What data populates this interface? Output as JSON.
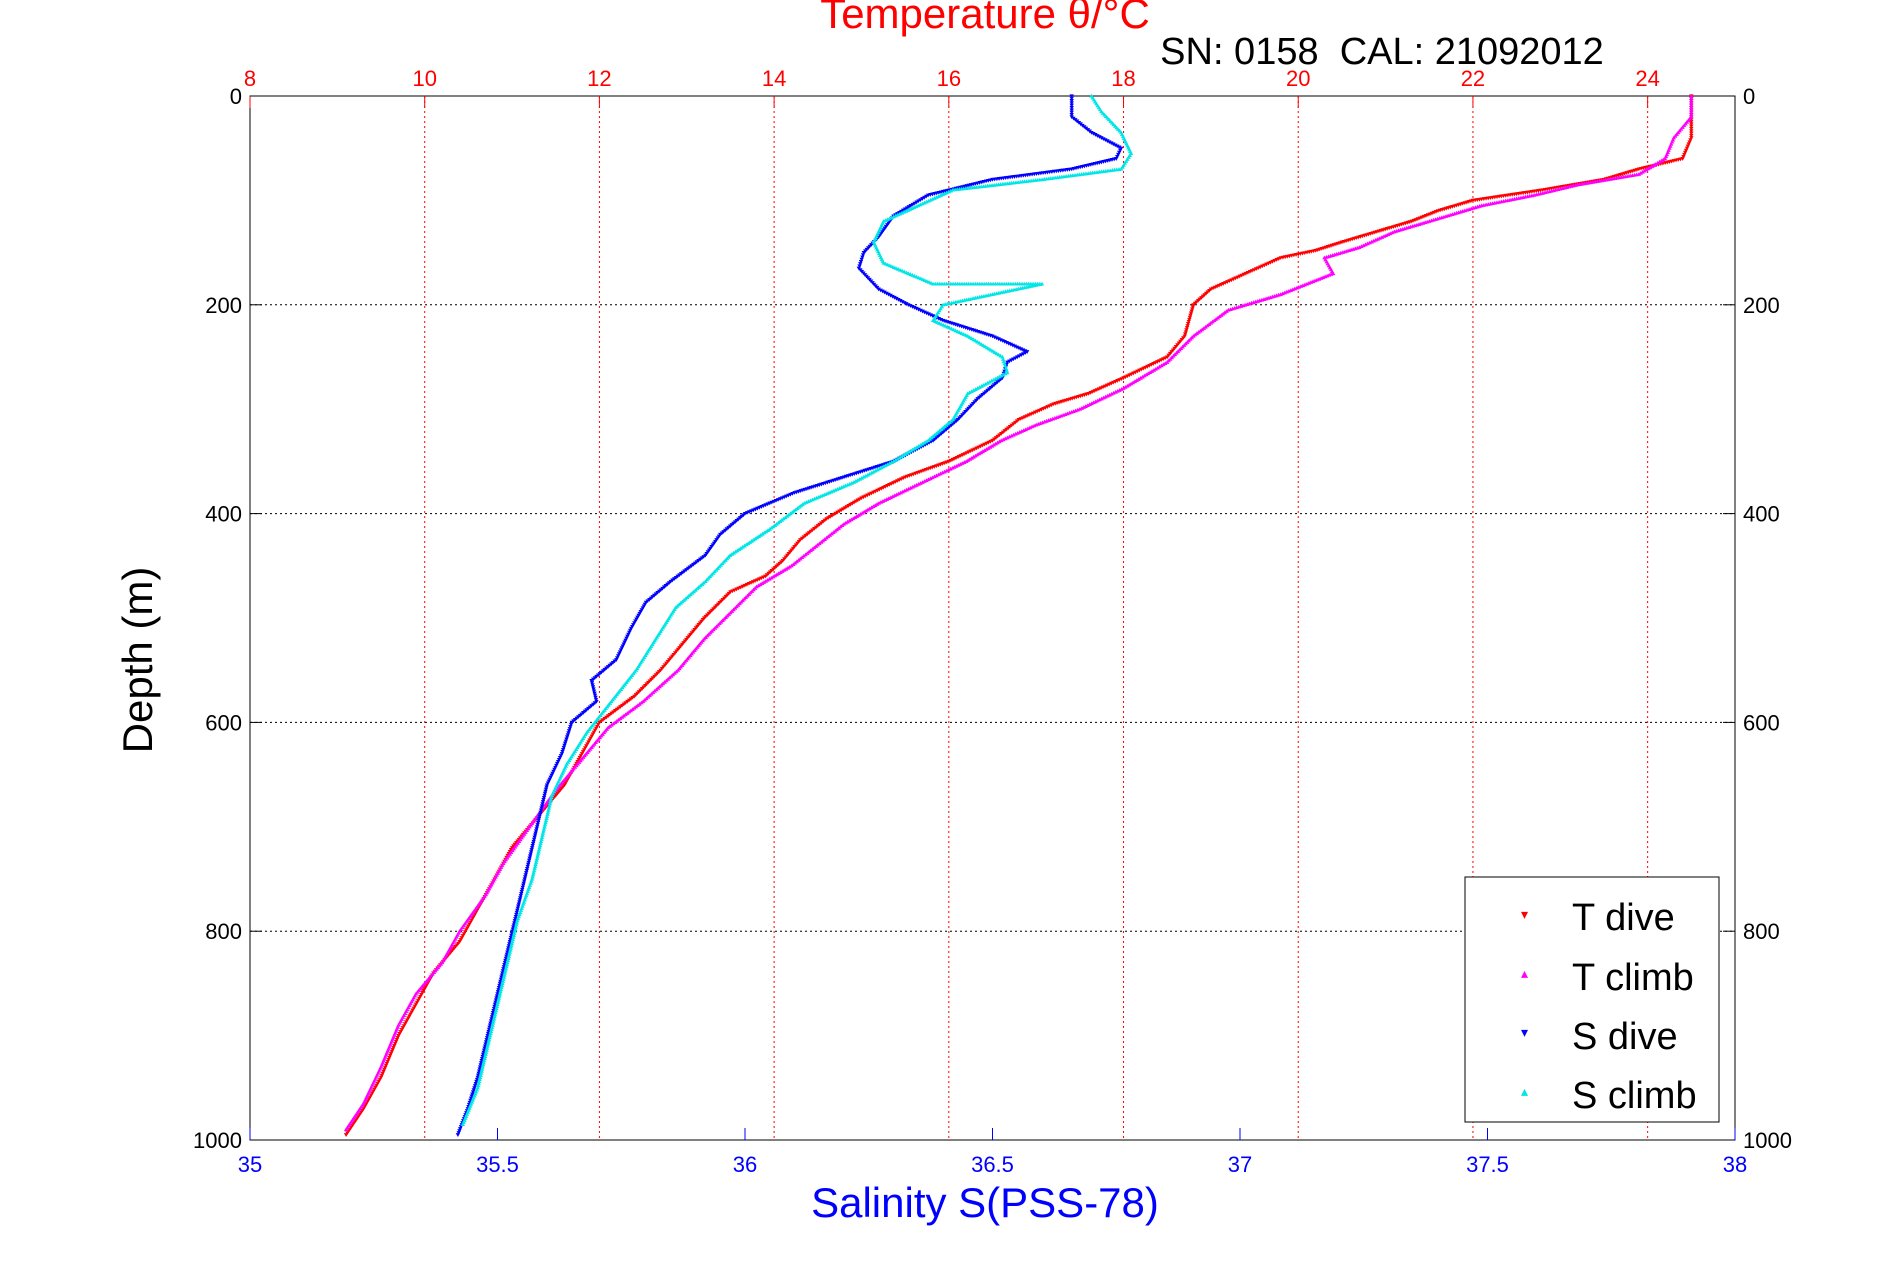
{
  "chart_data": {
    "type": "scatter",
    "title": "Temperature θ/°C",
    "subtitle": "SN: 0158  CAL: 21092012",
    "xlabel_top": "Temperature θ/°C",
    "xlabel_bottom": "Salinity S(PSS-78)",
    "ylabel": "Depth (m)",
    "temperature_axis": {
      "range": [
        8,
        25
      ],
      "ticks": [
        "8",
        "10",
        "12",
        "14",
        "16",
        "18",
        "20",
        "22",
        "24"
      ],
      "tick_values": [
        8,
        10,
        12,
        14,
        16,
        18,
        20,
        22,
        24
      ]
    },
    "salinity_axis": {
      "range": [
        35,
        38
      ],
      "ticks": [
        "35",
        "35.5",
        "36",
        "36.5",
        "37",
        "37.5",
        "38"
      ],
      "tick_values": [
        35,
        35.5,
        36,
        36.5,
        37,
        37.5,
        38
      ]
    },
    "depth_axis": {
      "range": [
        0,
        1000
      ],
      "reversed": true,
      "ticks": [
        "0",
        "200",
        "400",
        "600",
        "800",
        "1000"
      ],
      "tick_values": [
        0,
        200,
        400,
        600,
        800,
        1000
      ]
    },
    "grid": true,
    "legend_position": "bottom-right",
    "colors": {
      "t_dive": "#ff0000",
      "t_climb": "#ff00ff",
      "s_dive": "#0000ff",
      "s_climb": "#00e5e5",
      "temp_axis": "#ff0000",
      "sal_axis": "#0000ff"
    },
    "series": [
      {
        "name": "T dive",
        "axis": "temperature",
        "marker": "▾",
        "points": [
          [
            24.5,
            0
          ],
          [
            24.5,
            20
          ],
          [
            24.5,
            40
          ],
          [
            24.4,
            60
          ],
          [
            23.9,
            70
          ],
          [
            23.5,
            80
          ],
          [
            22.8,
            90
          ],
          [
            22.0,
            100
          ],
          [
            21.6,
            110
          ],
          [
            21.3,
            120
          ],
          [
            20.9,
            130
          ],
          [
            20.5,
            140
          ],
          [
            20.2,
            148
          ],
          [
            19.8,
            155
          ],
          [
            19.4,
            170
          ],
          [
            19.0,
            185
          ],
          [
            18.8,
            200
          ],
          [
            18.7,
            230
          ],
          [
            18.5,
            250
          ],
          [
            18.0,
            270
          ],
          [
            17.6,
            285
          ],
          [
            17.2,
            295
          ],
          [
            16.8,
            310
          ],
          [
            16.5,
            330
          ],
          [
            16.0,
            350
          ],
          [
            15.5,
            365
          ],
          [
            15.0,
            385
          ],
          [
            14.6,
            405
          ],
          [
            14.3,
            425
          ],
          [
            14.1,
            445
          ],
          [
            13.9,
            460
          ],
          [
            13.5,
            475
          ],
          [
            13.2,
            500
          ],
          [
            12.9,
            530
          ],
          [
            12.7,
            550
          ],
          [
            12.4,
            575
          ],
          [
            12.0,
            600
          ],
          [
            11.8,
            630
          ],
          [
            11.6,
            660
          ],
          [
            11.3,
            690
          ],
          [
            11.0,
            720
          ],
          [
            10.8,
            750
          ],
          [
            10.6,
            780
          ],
          [
            10.4,
            810
          ],
          [
            10.1,
            840
          ],
          [
            9.9,
            870
          ],
          [
            9.7,
            900
          ],
          [
            9.5,
            940
          ],
          [
            9.3,
            970
          ],
          [
            9.1,
            995
          ]
        ]
      },
      {
        "name": "T climb",
        "axis": "temperature",
        "marker": "▴",
        "points": [
          [
            24.5,
            0
          ],
          [
            24.5,
            20
          ],
          [
            24.3,
            40
          ],
          [
            24.2,
            60
          ],
          [
            23.9,
            75
          ],
          [
            23.2,
            85
          ],
          [
            22.7,
            95
          ],
          [
            22.1,
            105
          ],
          [
            21.5,
            120
          ],
          [
            21.1,
            130
          ],
          [
            20.7,
            145
          ],
          [
            20.3,
            155
          ],
          [
            20.4,
            170
          ],
          [
            20.1,
            180
          ],
          [
            19.8,
            190
          ],
          [
            19.2,
            205
          ],
          [
            18.8,
            230
          ],
          [
            18.5,
            255
          ],
          [
            18.0,
            280
          ],
          [
            17.5,
            300
          ],
          [
            17.0,
            315
          ],
          [
            16.6,
            330
          ],
          [
            16.2,
            350
          ],
          [
            15.7,
            370
          ],
          [
            15.2,
            390
          ],
          [
            14.8,
            410
          ],
          [
            14.5,
            430
          ],
          [
            14.2,
            450
          ],
          [
            13.8,
            470
          ],
          [
            13.5,
            495
          ],
          [
            13.2,
            520
          ],
          [
            12.9,
            550
          ],
          [
            12.5,
            580
          ],
          [
            12.1,
            605
          ],
          [
            11.8,
            635
          ],
          [
            11.5,
            665
          ],
          [
            11.2,
            700
          ],
          [
            10.9,
            735
          ],
          [
            10.7,
            765
          ],
          [
            10.4,
            800
          ],
          [
            10.2,
            830
          ],
          [
            9.9,
            860
          ],
          [
            9.7,
            890
          ],
          [
            9.5,
            930
          ],
          [
            9.3,
            965
          ],
          [
            9.1,
            990
          ]
        ]
      },
      {
        "name": "S dive",
        "axis": "salinity",
        "marker": "▾",
        "points": [
          [
            36.66,
            0
          ],
          [
            36.66,
            20
          ],
          [
            36.7,
            35
          ],
          [
            36.76,
            50
          ],
          [
            36.75,
            60
          ],
          [
            36.66,
            70
          ],
          [
            36.5,
            80
          ],
          [
            36.37,
            95
          ],
          [
            36.3,
            115
          ],
          [
            36.27,
            135
          ],
          [
            36.24,
            150
          ],
          [
            36.23,
            165
          ],
          [
            36.27,
            185
          ],
          [
            36.33,
            200
          ],
          [
            36.4,
            215
          ],
          [
            36.5,
            230
          ],
          [
            36.57,
            245
          ],
          [
            36.53,
            255
          ],
          [
            36.52,
            270
          ],
          [
            36.47,
            290
          ],
          [
            36.43,
            310
          ],
          [
            36.38,
            330
          ],
          [
            36.3,
            350
          ],
          [
            36.2,
            365
          ],
          [
            36.1,
            380
          ],
          [
            36.0,
            400
          ],
          [
            35.95,
            420
          ],
          [
            35.92,
            440
          ],
          [
            35.85,
            465
          ],
          [
            35.8,
            485
          ],
          [
            35.77,
            510
          ],
          [
            35.74,
            540
          ],
          [
            35.69,
            560
          ],
          [
            35.7,
            580
          ],
          [
            35.65,
            600
          ],
          [
            35.63,
            630
          ],
          [
            35.6,
            660
          ],
          [
            35.58,
            700
          ],
          [
            35.56,
            740
          ],
          [
            35.54,
            780
          ],
          [
            35.52,
            820
          ],
          [
            35.5,
            860
          ],
          [
            35.48,
            900
          ],
          [
            35.46,
            940
          ],
          [
            35.44,
            970
          ],
          [
            35.42,
            995
          ]
        ]
      },
      {
        "name": "S climb",
        "axis": "salinity",
        "marker": "▴",
        "points": [
          [
            36.7,
            0
          ],
          [
            36.72,
            15
          ],
          [
            36.76,
            35
          ],
          [
            36.78,
            55
          ],
          [
            36.76,
            70
          ],
          [
            36.6,
            80
          ],
          [
            36.42,
            90
          ],
          [
            36.35,
            105
          ],
          [
            36.28,
            120
          ],
          [
            36.26,
            140
          ],
          [
            36.28,
            160
          ],
          [
            36.38,
            180
          ],
          [
            36.6,
            180
          ],
          [
            36.4,
            200
          ],
          [
            36.38,
            215
          ],
          [
            36.45,
            230
          ],
          [
            36.52,
            250
          ],
          [
            36.53,
            265
          ],
          [
            36.45,
            285
          ],
          [
            36.42,
            310
          ],
          [
            36.37,
            330
          ],
          [
            36.3,
            350
          ],
          [
            36.22,
            370
          ],
          [
            36.12,
            390
          ],
          [
            36.05,
            415
          ],
          [
            35.97,
            440
          ],
          [
            35.92,
            465
          ],
          [
            35.86,
            490
          ],
          [
            35.82,
            520
          ],
          [
            35.78,
            550
          ],
          [
            35.73,
            580
          ],
          [
            35.68,
            610
          ],
          [
            35.64,
            640
          ],
          [
            35.61,
            670
          ],
          [
            35.59,
            710
          ],
          [
            35.57,
            750
          ],
          [
            35.54,
            790
          ],
          [
            35.52,
            830
          ],
          [
            35.5,
            870
          ],
          [
            35.48,
            910
          ],
          [
            35.46,
            950
          ],
          [
            35.43,
            985
          ]
        ]
      }
    ]
  }
}
